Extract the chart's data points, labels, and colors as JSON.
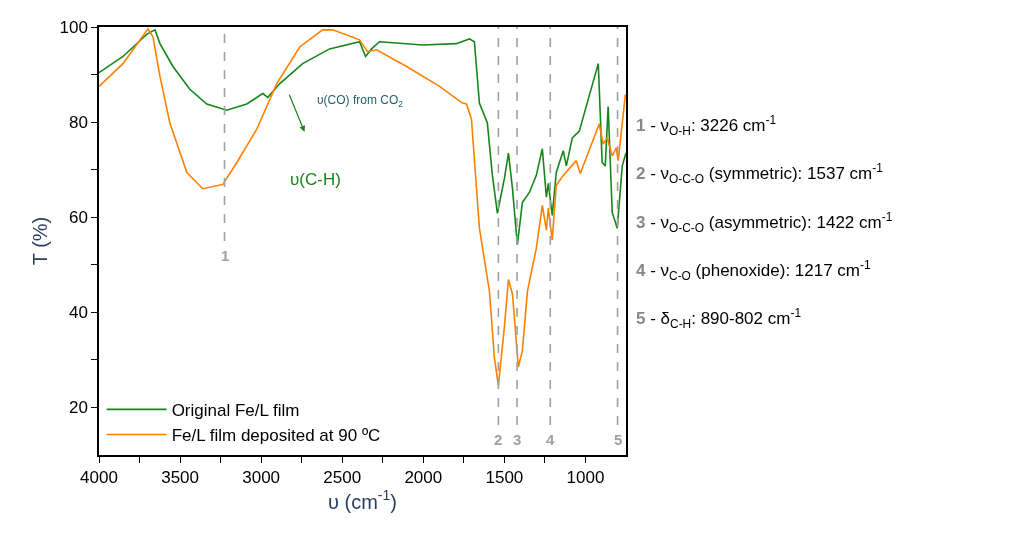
{
  "chart_data": {
    "type": "line",
    "xlabel": "υ (cm$^{-1}$)",
    "ylabel": "T (%)",
    "xlim": [
      4000,
      750
    ],
    "ylim": [
      10,
      100
    ],
    "xticks": [
      4000,
      {
        "value": 3750,
        "label": null
      },
      3500,
      {
        "value": 3250,
        "label": null
      },
      3000,
      {
        "value": 2750,
        "label": null
      },
      2500,
      {
        "value": 2250,
        "label": null
      },
      2000,
      {
        "value": 1750,
        "label": null
      },
      1500,
      {
        "value": 1250,
        "label": null
      },
      1000
    ],
    "yticks": [
      20,
      {
        "value": 30,
        "label": null
      },
      40,
      {
        "value": 50,
        "label": null
      },
      60,
      {
        "value": 70,
        "label": null
      },
      80,
      {
        "value": 90,
        "label": null
      },
      100
    ],
    "legend": "bottom left",
    "marker": "none",
    "line_style": "solid",
    "series": [
      {
        "name": "Original Fe/L film",
        "color": "#17861a",
        "x": [
          4000,
          3852,
          3704,
          3655,
          3624,
          3544,
          3440,
          3335,
          3212,
          3089,
          2990,
          2959,
          2885,
          2744,
          2578,
          2393,
          2356,
          2319,
          2270,
          2005,
          1796,
          1716,
          1685,
          1654,
          1605,
          1574,
          1543,
          1500,
          1475,
          1450,
          1420,
          1389,
          1346,
          1303,
          1266,
          1241,
          1229,
          1205,
          1180,
          1137,
          1118,
          1081,
          1038,
          921,
          897,
          878,
          860,
          835,
          804,
          773,
          750
        ],
        "values": [
          90.4,
          93.8,
          98.5,
          99.4,
          96.5,
          91.7,
          86.9,
          83.8,
          82.5,
          83.8,
          86,
          85.2,
          88.1,
          92.3,
          95.4,
          96.9,
          93.8,
          95.4,
          96.9,
          96.2,
          96.5,
          97.5,
          96.9,
          84,
          79.8,
          68.8,
          60.8,
          68.1,
          73.5,
          66,
          54.2,
          63.1,
          65.2,
          68.8,
          74.4,
          64.2,
          67.1,
          60.4,
          69.4,
          74,
          70.8,
          76.7,
          78.1,
          92.3,
          71.5,
          70.8,
          83.3,
          61,
          57.7,
          70.8,
          73.5
        ]
      },
      {
        "name": "Fe/L film deposited at 90 ºC",
        "color": "#ff8000",
        "x": [
          4000,
          3852,
          3698,
          3667,
          3624,
          3563,
          3458,
          3360,
          3236,
          3150,
          3027,
          2904,
          2762,
          2621,
          2559,
          2393,
          2344,
          2288,
          2103,
          1900,
          1759,
          1734,
          1703,
          1654,
          1592,
          1562,
          1537,
          1500,
          1475,
          1450,
          1414,
          1389,
          1358,
          1303,
          1266,
          1241,
          1229,
          1205,
          1180,
          1137,
          1057,
          1032,
          915,
          891,
          866,
          835,
          810,
          798,
          754
        ],
        "values": [
          87.5,
          92.3,
          99.6,
          97.9,
          89.6,
          79.8,
          69.4,
          66,
          66.9,
          71.5,
          78.5,
          88.1,
          95.8,
          99.4,
          99.4,
          97.3,
          94.8,
          95.2,
          91.7,
          87.5,
          84,
          83.8,
          80.6,
          57.7,
          44.4,
          30.6,
          24.6,
          36.9,
          46.9,
          43.8,
          28.5,
          31.9,
          44.4,
          53.5,
          62.5,
          57.3,
          61.9,
          55.2,
          66.7,
          68.8,
          71.9,
          69.2,
          79.6,
          75.4,
          76.7,
          72.9,
          74.6,
          71.9,
          85.8
        ]
      }
    ],
    "ref_lines": [
      {
        "axis": "x",
        "value": 3226,
        "color": "#a0a0a0",
        "line_style": "dashed"
      },
      {
        "axis": "x",
        "value": 1537,
        "color": "#a0a0a0",
        "line_style": "dashed"
      },
      {
        "axis": "x",
        "value": 1422,
        "color": "#a0a0a0",
        "line_style": "dashed"
      },
      {
        "axis": "x",
        "value": 1217,
        "color": "#a0a0a0",
        "line_style": "dashed"
      },
      {
        "axis": "x",
        "value": 802,
        "color": "#a0a0a0",
        "line_style": "dashed"
      }
    ],
    "annotations": [
      "υ(CO) from CO$_{2}$",
      "υ(C-H)",
      "1",
      "2",
      "3",
      "4",
      "5",
      "1 - ν$_{O-H}$: 3226 cm$^{-1}$",
      "2 - ν$_{O-C-O}$ (symmetric): 1537 cm$^{-1}$",
      "3 - ν$_{O-C-O}$ (asymmetric): 1422 cm$^{-1}$",
      "4 - ν$_{C-O}$ (phenoxide): 1217 cm$^{-1}$",
      "5 - δ$_{C-H}$: 890-802 cm$^{-1}$"
    ]
  }
}
